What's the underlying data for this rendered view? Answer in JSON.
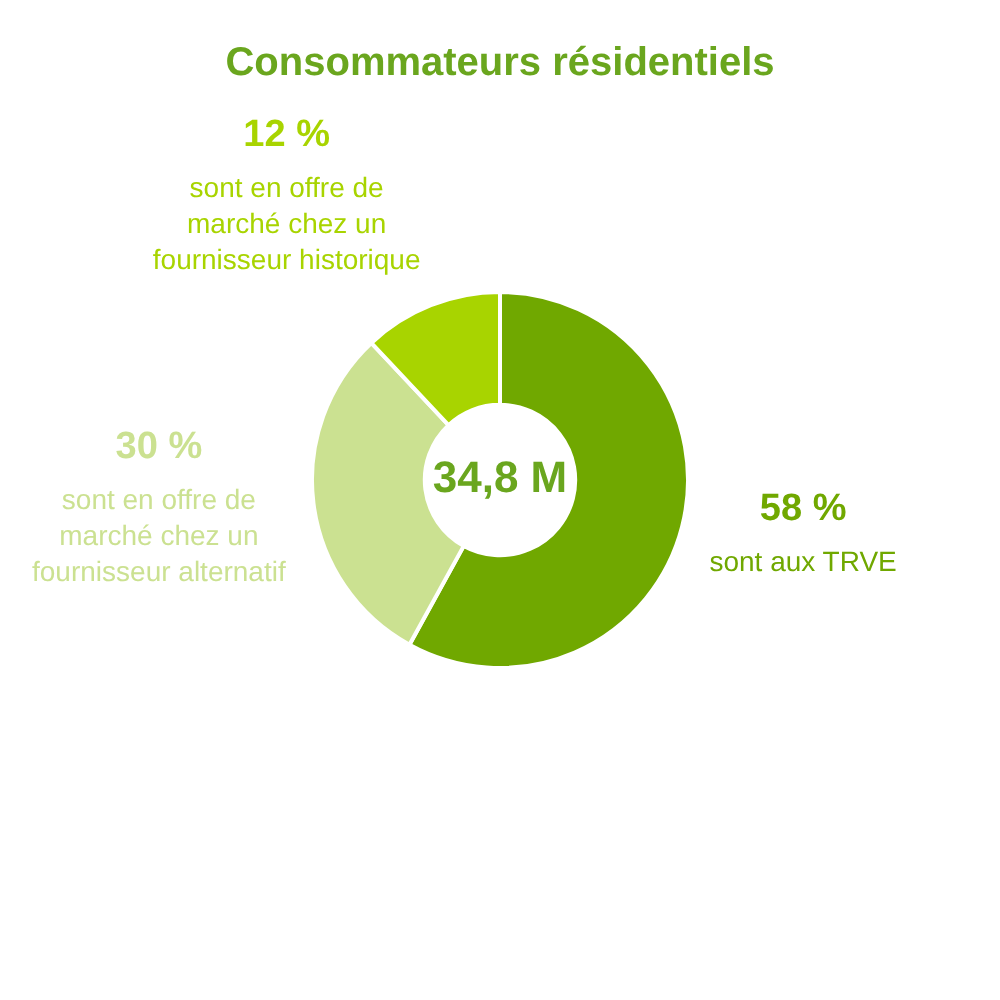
{
  "chart_data": {
    "type": "donut",
    "title": "Consommateurs résidentiels",
    "categories": [
      "sont aux TRVE",
      "sont en offre de marché chez un fournisseur alternatif",
      "sont en offre de marché chez un fournisseur historique"
    ],
    "values": [
      58,
      30,
      12
    ],
    "value_labels": [
      "58 %",
      "30 %",
      "12 %"
    ],
    "colors": [
      "#70a800",
      "#cbe191",
      "#a8d400"
    ],
    "annotations": [
      "34,8 M"
    ],
    "legend": false
  }
}
